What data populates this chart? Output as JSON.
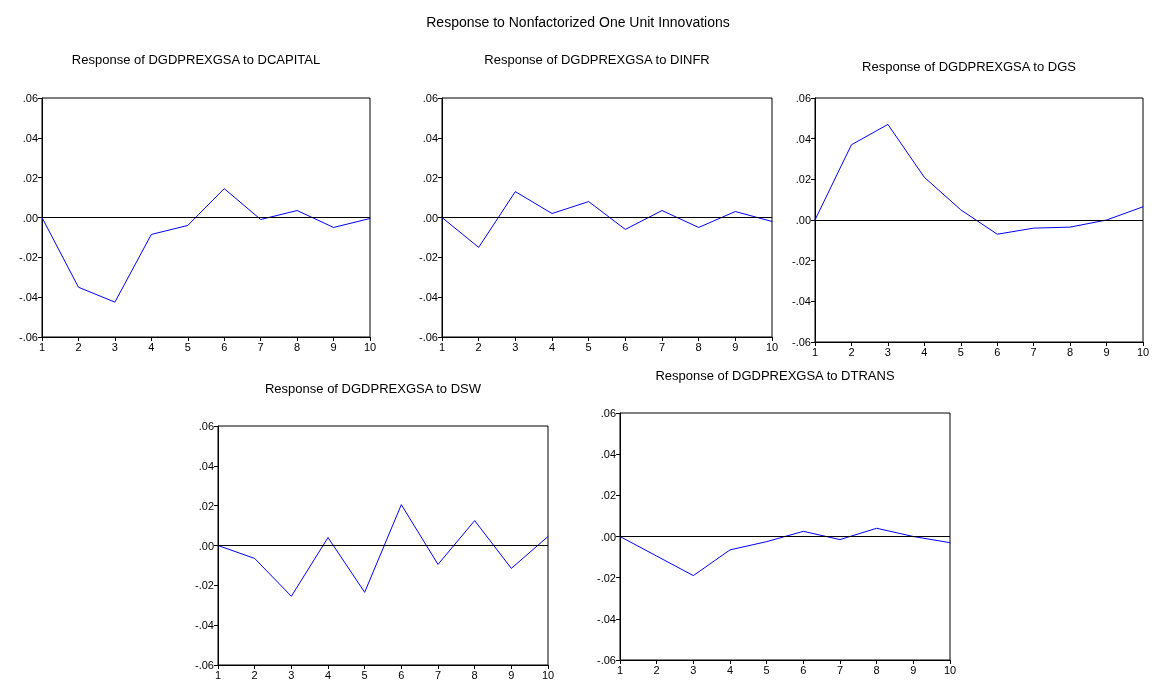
{
  "chart_data": [
    {
      "type": "line",
      "title": "Response of DGDPREXGSA to DCAPITAL",
      "annotations": [
        "Response to Nonfactorized One Unit Innovations"
      ],
      "x": [
        1,
        2,
        3,
        4,
        5,
        6,
        7,
        8,
        9,
        10
      ],
      "series": [
        {
          "color": "#0000ff",
          "values": [
            0,
            -0.035,
            -0.0425,
            -0.0085,
            -0.004,
            0.0145,
            -0.001,
            0.0035,
            -0.005,
            -0.0005
          ]
        }
      ],
      "xlim": [
        1,
        10
      ],
      "xticks": [
        1,
        2,
        3,
        4,
        5,
        6,
        7,
        8,
        9,
        10
      ],
      "ylim": [
        -0.06,
        0.06
      ],
      "yticks": [
        {
          "value": -0.06,
          "label": "-.06"
        },
        {
          "value": -0.04,
          "label": "-.04"
        },
        {
          "value": -0.02,
          "label": "-.02"
        },
        {
          "value": 0,
          "label": ".00"
        },
        {
          "value": 0.02,
          "label": ".02"
        },
        {
          "value": 0.04,
          "label": ".04"
        },
        {
          "value": 0.06,
          "label": ".06"
        }
      ],
      "ref_lines": [
        {
          "axis": "y",
          "value": 0,
          "label": null,
          "color": "#000000"
        }
      ],
      "marker": "none"
    },
    {
      "type": "line",
      "title": "Response of DGDPREXGSA to DINFR",
      "x": [
        1,
        2,
        3,
        4,
        5,
        6,
        7,
        8,
        9,
        10
      ],
      "series": [
        {
          "color": "#0000ff",
          "values": [
            0,
            -0.015,
            0.013,
            0.002,
            0.008,
            -0.006,
            0.0035,
            -0.005,
            0.003,
            -0.002
          ]
        }
      ],
      "xlim": [
        1,
        10
      ],
      "xticks": [
        1,
        2,
        3,
        4,
        5,
        6,
        7,
        8,
        9,
        10
      ],
      "ylim": [
        -0.06,
        0.06
      ],
      "yticks": [
        {
          "value": -0.06,
          "label": "-.06"
        },
        {
          "value": -0.04,
          "label": "-.04"
        },
        {
          "value": -0.02,
          "label": "-.02"
        },
        {
          "value": 0,
          "label": ".00"
        },
        {
          "value": 0.02,
          "label": ".02"
        },
        {
          "value": 0.04,
          "label": ".04"
        },
        {
          "value": 0.06,
          "label": ".06"
        }
      ],
      "ref_lines": [
        {
          "axis": "y",
          "value": 0,
          "label": null,
          "color": "#000000"
        }
      ],
      "marker": "none"
    },
    {
      "type": "line",
      "title": "Response of DGDPREXGSA to DGS",
      "x": [
        1,
        2,
        3,
        4,
        5,
        6,
        7,
        8,
        9,
        10
      ],
      "series": [
        {
          "color": "#0000ff",
          "values": [
            0,
            0.037,
            0.047,
            0.021,
            0.005,
            -0.007,
            -0.004,
            -0.0035,
            0,
            0.0065
          ]
        }
      ],
      "xlim": [
        1,
        10
      ],
      "xticks": [
        1,
        2,
        3,
        4,
        5,
        6,
        7,
        8,
        9,
        10
      ],
      "ylim": [
        -0.06,
        0.06
      ],
      "yticks": [
        {
          "value": -0.06,
          "label": "-.06"
        },
        {
          "value": -0.04,
          "label": "-.04"
        },
        {
          "value": -0.02,
          "label": "-.02"
        },
        {
          "value": 0,
          "label": ".00"
        },
        {
          "value": 0.02,
          "label": ".02"
        },
        {
          "value": 0.04,
          "label": ".04"
        },
        {
          "value": 0.06,
          "label": ".06"
        }
      ],
      "ref_lines": [
        {
          "axis": "y",
          "value": 0,
          "label": null,
          "color": "#000000"
        }
      ],
      "marker": "none"
    },
    {
      "type": "line",
      "title": "Response of DGDPREXGSA to DSW",
      "x": [
        1,
        2,
        3,
        4,
        5,
        6,
        7,
        8,
        9,
        10
      ],
      "series": [
        {
          "color": "#0000ff",
          "values": [
            0,
            -0.0065,
            -0.0255,
            0.004,
            -0.0235,
            0.0205,
            -0.0095,
            0.0125,
            -0.0115,
            0.0045
          ]
        }
      ],
      "xlim": [
        1,
        10
      ],
      "xticks": [
        1,
        2,
        3,
        4,
        5,
        6,
        7,
        8,
        9,
        10
      ],
      "ylim": [
        -0.06,
        0.06
      ],
      "yticks": [
        {
          "value": -0.06,
          "label": "-.06"
        },
        {
          "value": -0.04,
          "label": "-.04"
        },
        {
          "value": -0.02,
          "label": "-.02"
        },
        {
          "value": 0,
          "label": ".00"
        },
        {
          "value": 0.02,
          "label": ".02"
        },
        {
          "value": 0.04,
          "label": ".04"
        },
        {
          "value": 0.06,
          "label": ".06"
        }
      ],
      "ref_lines": [
        {
          "axis": "y",
          "value": 0,
          "label": null,
          "color": "#000000"
        }
      ],
      "marker": "none"
    },
    {
      "type": "line",
      "title": "Response of DGDPREXGSA to DTRANS",
      "x": [
        1,
        2,
        3,
        4,
        5,
        6,
        7,
        8,
        9,
        10
      ],
      "series": [
        {
          "color": "#0000ff",
          "values": [
            0,
            -0.0095,
            -0.019,
            -0.0065,
            -0.0025,
            0.0025,
            -0.0015,
            0.004,
            0,
            -0.003
          ]
        }
      ],
      "xlim": [
        1,
        10
      ],
      "xticks": [
        1,
        2,
        3,
        4,
        5,
        6,
        7,
        8,
        9,
        10
      ],
      "ylim": [
        -0.06,
        0.06
      ],
      "yticks": [
        {
          "value": -0.06,
          "label": "-.06"
        },
        {
          "value": -0.04,
          "label": "-.04"
        },
        {
          "value": -0.02,
          "label": "-.02"
        },
        {
          "value": 0,
          "label": ".00"
        },
        {
          "value": 0.02,
          "label": ".02"
        },
        {
          "value": 0.04,
          "label": ".04"
        },
        {
          "value": 0.06,
          "label": ".06"
        }
      ],
      "ref_lines": [
        {
          "axis": "y",
          "value": 0,
          "label": null,
          "color": "#000000"
        }
      ],
      "marker": "none"
    }
  ]
}
